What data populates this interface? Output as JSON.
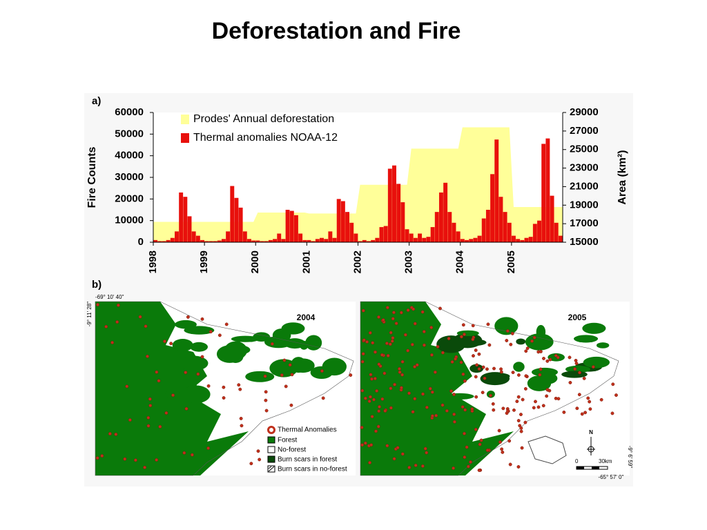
{
  "title": "Deforestation and Fire",
  "chart_data": {
    "type": "bar",
    "panel_label": "a)",
    "categories": [
      "1998",
      null,
      null,
      null,
      null,
      null,
      null,
      null,
      null,
      null,
      null,
      null,
      "1999",
      null,
      null,
      null,
      null,
      null,
      null,
      null,
      null,
      null,
      null,
      null,
      "2000",
      null,
      null,
      null,
      null,
      null,
      null,
      null,
      null,
      null,
      null,
      null,
      "2001",
      null,
      null,
      null,
      null,
      null,
      null,
      null,
      null,
      null,
      null,
      null,
      "2002",
      null,
      null,
      null,
      null,
      null,
      null,
      null,
      null,
      null,
      null,
      null,
      "2003",
      null,
      null,
      null,
      null,
      null,
      null,
      null,
      null,
      null,
      null,
      null,
      "2004",
      null,
      null,
      null,
      null,
      null,
      null,
      null,
      null,
      null,
      null,
      null,
      "2005",
      null,
      null,
      null,
      null,
      null,
      null,
      null,
      null,
      null,
      null,
      null
    ],
    "series": [
      {
        "name": "Thermal anomalies NOAA-12",
        "color": "#e8100c",
        "axis": "y",
        "values": [
          1000,
          500,
          500,
          1000,
          2000,
          5000,
          23000,
          21000,
          12000,
          5000,
          3000,
          1000,
          500,
          500,
          500,
          800,
          1500,
          5000,
          26000,
          20500,
          16000,
          5000,
          1500,
          800,
          800,
          500,
          500,
          1000,
          1500,
          4000,
          1500,
          15000,
          14500,
          12500,
          4000,
          1000,
          1000,
          500,
          1500,
          2000,
          1500,
          5000,
          2000,
          20000,
          19000,
          14000,
          9000,
          4000,
          500,
          1000,
          500,
          1000,
          2000,
          7000,
          7500,
          34000,
          35500,
          27000,
          18500,
          6000,
          4000,
          2000,
          4000,
          2000,
          2500,
          7000,
          14000,
          23000,
          27500,
          14000,
          9000,
          5000,
          1500,
          1000,
          1500,
          2000,
          3000,
          11000,
          15000,
          31500,
          47500,
          21000,
          14000,
          9000,
          3000,
          1500,
          1000,
          2000,
          2500,
          8500,
          10000,
          45500,
          48000,
          21500,
          9000,
          3000
        ]
      },
      {
        "name": "Prodes' Annual deforestation",
        "color": "#ffff99",
        "axis": "y2",
        "values": [
          17200,
          17200,
          17200,
          17200,
          17200,
          17200,
          17200,
          17200,
          17200,
          17200,
          17200,
          17200,
          17200,
          17200,
          17200,
          17200,
          17200,
          17200,
          17200,
          17200,
          17200,
          17200,
          17200,
          17200,
          18200,
          18200,
          18200,
          18200,
          18200,
          18200,
          18200,
          18200,
          18200,
          18200,
          18200,
          18200,
          18100,
          18100,
          18100,
          18100,
          18100,
          18100,
          18100,
          18100,
          18100,
          18100,
          18100,
          18100,
          21200,
          21200,
          21200,
          21200,
          21200,
          21200,
          21200,
          21200,
          21200,
          21200,
          21200,
          21200,
          25100,
          25100,
          25100,
          25100,
          25100,
          25100,
          25100,
          25100,
          25100,
          25100,
          25100,
          25100,
          27400,
          27400,
          27400,
          27400,
          27400,
          27400,
          27400,
          27400,
          27400,
          27400,
          27400,
          27400,
          18800,
          18800,
          18800,
          18800,
          18800,
          18800,
          18800,
          18800,
          18800,
          18800,
          18800,
          18800
        ]
      }
    ],
    "ylabel": "Fire Counts",
    "y2label": "Area (km²)",
    "ylim": [
      0,
      60000
    ],
    "yticks": [
      0,
      10000,
      20000,
      30000,
      40000,
      50000,
      60000
    ],
    "y2lim": [
      15000,
      29000
    ],
    "y2ticks": [
      15000,
      17000,
      19000,
      21000,
      23000,
      25000,
      27000,
      29000
    ],
    "legend": "top-left"
  },
  "maps": {
    "panel_label": "b)",
    "year_left": "2004",
    "year_right": "2005",
    "coord_top": "-69° 10' 40''",
    "coord_left": "-9° 11' 28''",
    "coord_right": "-9° 6' 59''",
    "coord_bottom": "-65° 57' 0''",
    "north": "N",
    "scale_start": "0",
    "scale_end": "30km",
    "legend": [
      "Thermal Anomalies",
      "Forest",
      "No-forest",
      "Burn scars in forest",
      "Burn scars in no-forest"
    ]
  }
}
